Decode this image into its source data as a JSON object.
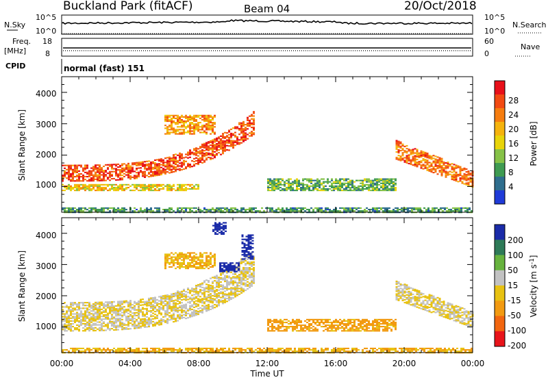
{
  "header": {
    "title": "Buckland Park (fitACF)",
    "beam": "Beam 04",
    "date": "20/Oct/2018"
  },
  "noise_panel": {
    "left_label": "N.Sky",
    "right_label": "N.Search",
    "ticks_left": [
      "10^5",
      "10^0"
    ],
    "ticks_right": [
      "10^5",
      "10^0"
    ]
  },
  "freq_panel": {
    "left_label_1": "Freq.",
    "left_label_2": "[MHz]",
    "right_label": "Nave",
    "ticks_left": [
      "18",
      "8"
    ],
    "ticks_right": [
      "60",
      "0"
    ]
  },
  "cpid_panel": {
    "label": "CPID",
    "text": "normal (fast) 151"
  },
  "x_axis": {
    "label": "Time UT",
    "ticks": [
      "00:00",
      "04:00",
      "08:00",
      "12:00",
      "16:00",
      "20:00",
      "00:00"
    ],
    "range_hours": [
      0,
      24
    ]
  },
  "power_colorbar": {
    "label": "Power [dB]",
    "ticks": [
      "28",
      "24",
      "20",
      "16",
      "12",
      "8",
      "4"
    ],
    "colors": [
      "#e8101a",
      "#f24a12",
      "#f67d0f",
      "#f5b30d",
      "#e8d40a",
      "#86c247",
      "#3f9b52",
      "#2f6e8e",
      "#1f3bd8"
    ]
  },
  "velocity_colorbar": {
    "label": "Velocity [m s",
    "label_sup": "-1",
    "label_end": "]",
    "ticks": [
      "200",
      "100",
      "50",
      "15",
      "-15",
      "-50",
      "-100",
      "-200"
    ],
    "colors": [
      "#1a2ba8",
      "#2e7a58",
      "#67b33e",
      "#c2c2c2",
      "#e8c212",
      "#f29a11",
      "#f2660f",
      "#e8141a"
    ]
  },
  "chart_data": [
    {
      "type": "heatmap",
      "title": "Power",
      "xlabel": "Time UT",
      "ylabel": "Slant Range [km]",
      "xlim_hours": [
        0,
        24
      ],
      "ylim_km": [
        180,
        4500
      ],
      "y_ticks": [
        "4000",
        "3000",
        "2000",
        "1000"
      ],
      "colorbar": "Power [dB]",
      "features": [
        {
          "name": "F-band rising",
          "t_hours": [
            0,
            11.2
          ],
          "range_km": [
            1200,
            1700
          ],
          "power_db": 26
        },
        {
          "name": "lower band",
          "t_hours": [
            0,
            8
          ],
          "range_km": [
            900,
            1100
          ],
          "power_db": 18
        },
        {
          "name": "upper arc",
          "t_hours": [
            6,
            9
          ],
          "range_km": [
            2700,
            3300
          ],
          "power_db": 22
        },
        {
          "name": "midday patch",
          "t_hours": [
            12,
            19.5
          ],
          "range_km": [
            900,
            1300
          ],
          "power_db": 12
        },
        {
          "name": "evening arc",
          "t_hours": [
            19.5,
            24
          ],
          "range_km": [
            1200,
            2500
          ],
          "power_db": 24
        },
        {
          "name": "near-range clutter",
          "t_hours": [
            0,
            24
          ],
          "range_km": [
            200,
            350
          ],
          "power_db": 10
        }
      ]
    },
    {
      "type": "heatmap",
      "title": "Velocity",
      "xlabel": "Time UT",
      "ylabel": "Slant Range [km]",
      "xlim_hours": [
        0,
        24
      ],
      "ylim_km": [
        180,
        4500
      ],
      "y_ticks": [
        "4000",
        "3000",
        "2000",
        "1000"
      ],
      "colorbar": "Velocity [m s-1]",
      "features": [
        {
          "name": "F-band",
          "t_hours": [
            0,
            11.2
          ],
          "range_km": [
            900,
            1800
          ],
          "velocity_ms": 0
        },
        {
          "name": "upper arc",
          "t_hours": [
            6,
            9
          ],
          "range_km": [
            2900,
            3400
          ],
          "velocity_ms": -30
        },
        {
          "name": "blue patch 1",
          "t_hours": [
            8.8,
            9.6
          ],
          "range_km": [
            4000,
            4400
          ],
          "velocity_ms": 200
        },
        {
          "name": "blue patch 2",
          "t_hours": [
            9.2,
            10.4
          ],
          "range_km": [
            2800,
            3100
          ],
          "velocity_ms": 200
        },
        {
          "name": "blue patch 3",
          "t_hours": [
            10.5,
            11.2
          ],
          "range_km": [
            3200,
            4000
          ],
          "velocity_ms": 200
        },
        {
          "name": "midday patch",
          "t_hours": [
            12,
            19.5
          ],
          "range_km": [
            900,
            1300
          ],
          "velocity_ms": -40
        },
        {
          "name": "evening arc",
          "t_hours": [
            19.5,
            24
          ],
          "range_km": [
            1200,
            2500
          ],
          "velocity_ms": 0
        },
        {
          "name": "near-range clutter",
          "t_hours": [
            0,
            24
          ],
          "range_km": [
            200,
            350
          ],
          "velocity_ms": -30
        }
      ]
    }
  ]
}
